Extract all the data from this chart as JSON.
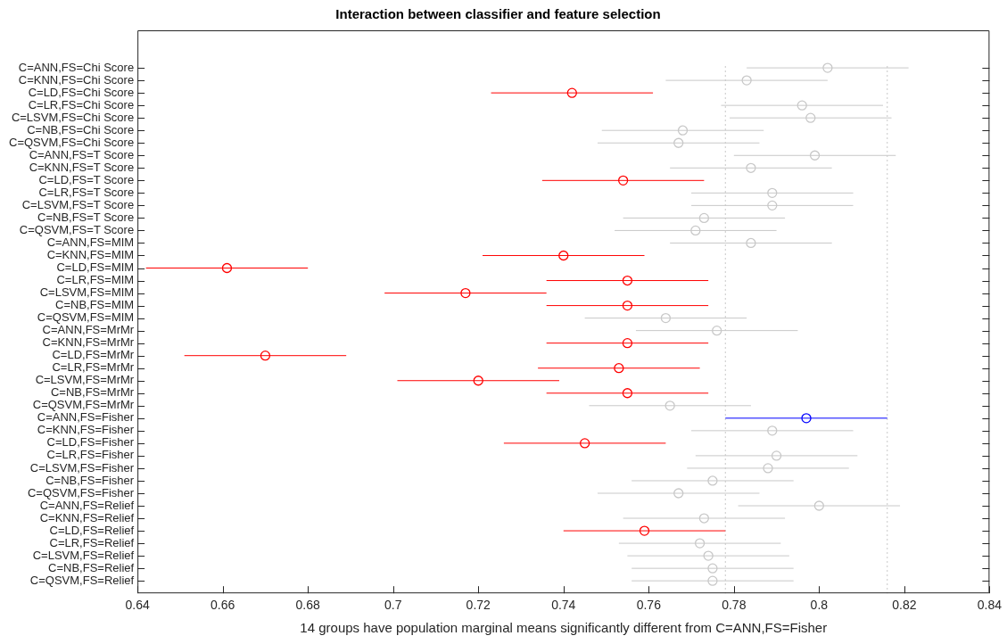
{
  "chart_data": {
    "type": "scatter",
    "orientation": "horizontal",
    "title": "Interaction between classifier and feature selection",
    "xlabel": "14 groups have population marginal means significantly different from C=ANN,FS=Fisher",
    "categories": [
      "C=ANN,FS=Chi Score",
      "C=KNN,FS=Chi Score",
      "C=LD,FS=Chi Score",
      "C=LR,FS=Chi Score",
      "C=LSVM,FS=Chi Score",
      "C=NB,FS=Chi Score",
      "C=QSVM,FS=Chi Score",
      "C=ANN,FS=T Score",
      "C=KNN,FS=T Score",
      "C=LD,FS=T Score",
      "C=LR,FS=T Score",
      "C=LSVM,FS=T Score",
      "C=NB,FS=T Score",
      "C=QSVM,FS=T Score",
      "C=ANN,FS=MIM",
      "C=KNN,FS=MIM",
      "C=LD,FS=MIM",
      "C=LR,FS=MIM",
      "C=LSVM,FS=MIM",
      "C=NB,FS=MIM",
      "C=QSVM,FS=MIM",
      "C=ANN,FS=MrMr",
      "C=KNN,FS=MrMr",
      "C=LD,FS=MrMr",
      "C=LR,FS=MrMr",
      "C=LSVM,FS=MrMr",
      "C=NB,FS=MrMr",
      "C=QSVM,FS=MrMr",
      "C=ANN,FS=Fisher",
      "C=KNN,FS=Fisher",
      "C=LD,FS=Fisher",
      "C=LR,FS=Fisher",
      "C=LSVM,FS=Fisher",
      "C=NB,FS=Fisher",
      "C=QSVM,FS=Fisher",
      "C=ANN,FS=Relief",
      "C=KNN,FS=Relief",
      "C=LD,FS=Relief",
      "C=LR,FS=Relief",
      "C=LSVM,FS=Relief",
      "C=NB,FS=Relief",
      "C=QSVM,FS=Relief"
    ],
    "values": [
      0.802,
      0.783,
      0.742,
      0.796,
      0.798,
      0.768,
      0.767,
      0.799,
      0.784,
      0.754,
      0.789,
      0.789,
      0.773,
      0.771,
      0.784,
      0.74,
      0.661,
      0.755,
      0.717,
      0.755,
      0.764,
      0.776,
      0.755,
      0.67,
      0.753,
      0.72,
      0.755,
      0.765,
      0.797,
      0.789,
      0.745,
      0.79,
      0.788,
      0.775,
      0.767,
      0.8,
      0.773,
      0.759,
      0.772,
      0.774,
      0.775,
      0.775
    ],
    "errors": [
      0.019,
      0.019,
      0.019,
      0.019,
      0.019,
      0.019,
      0.019,
      0.019,
      0.019,
      0.019,
      0.019,
      0.019,
      0.019,
      0.019,
      0.019,
      0.019,
      0.019,
      0.019,
      0.019,
      0.019,
      0.019,
      0.019,
      0.019,
      0.019,
      0.019,
      0.019,
      0.019,
      0.019,
      0.019,
      0.019,
      0.019,
      0.019,
      0.019,
      0.019,
      0.019,
      0.019,
      0.019,
      0.019,
      0.019,
      0.019,
      0.019,
      0.019
    ],
    "colors": [
      "#c8c8c8",
      "#c8c8c8",
      "#ff0000",
      "#c8c8c8",
      "#c8c8c8",
      "#c8c8c8",
      "#c8c8c8",
      "#c8c8c8",
      "#c8c8c8",
      "#ff0000",
      "#c8c8c8",
      "#c8c8c8",
      "#c8c8c8",
      "#c8c8c8",
      "#c8c8c8",
      "#ff0000",
      "#ff0000",
      "#ff0000",
      "#ff0000",
      "#ff0000",
      "#c8c8c8",
      "#c8c8c8",
      "#ff0000",
      "#ff0000",
      "#ff0000",
      "#ff0000",
      "#ff0000",
      "#c8c8c8",
      "#0000ff",
      "#c8c8c8",
      "#ff0000",
      "#c8c8c8",
      "#c8c8c8",
      "#c8c8c8",
      "#c8c8c8",
      "#c8c8c8",
      "#c8c8c8",
      "#ff0000",
      "#c8c8c8",
      "#c8c8c8",
      "#c8c8c8",
      "#c8c8c8"
    ],
    "xlim": [
      0.64,
      0.84
    ],
    "xticks": [
      0.64,
      0.66,
      0.68,
      0.7,
      0.72,
      0.74,
      0.76,
      0.78,
      0.8,
      0.82,
      0.84
    ],
    "ref_lines": [
      {
        "axis": "x",
        "value": 0.778,
        "color": "#c8c8c8",
        "line_style": "dotted"
      },
      {
        "axis": "x",
        "value": 0.816,
        "color": "#c8c8c8",
        "line_style": "dotted"
      }
    ],
    "marker": "circle",
    "grid": false,
    "legend": false
  }
}
